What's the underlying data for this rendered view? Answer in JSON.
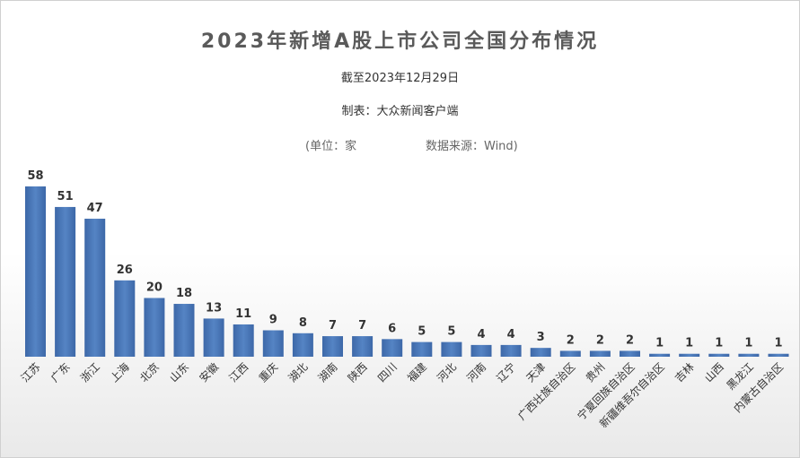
{
  "chart_data": {
    "type": "bar",
    "title": "2023年新增A股上市公司全国分布情况",
    "subtitle": "截至2023年12月29日",
    "credit": "制表：大众新闻客户端",
    "unit_note": "(单位：家",
    "source_note": "数据来源：Wind)",
    "categories": [
      "江苏",
      "广东",
      "浙江",
      "上海",
      "北京",
      "山东",
      "安徽",
      "江西",
      "重庆",
      "湖北",
      "湖南",
      "陕西",
      "四川",
      "福建",
      "河北",
      "河南",
      "辽宁",
      "天津",
      "广西壮族自治区",
      "贵州",
      "宁夏回族自治区",
      "新疆维吾尔自治区",
      "吉林",
      "山西",
      "黑龙江",
      "内蒙古自治区"
    ],
    "values": [
      58,
      51,
      47,
      26,
      20,
      18,
      13,
      11,
      9,
      8,
      7,
      7,
      6,
      5,
      5,
      4,
      4,
      3,
      2,
      2,
      2,
      1,
      1,
      1,
      1,
      1
    ],
    "ylim": [
      0,
      58
    ],
    "grid": false,
    "bar_color": "#4a76b4"
  }
}
